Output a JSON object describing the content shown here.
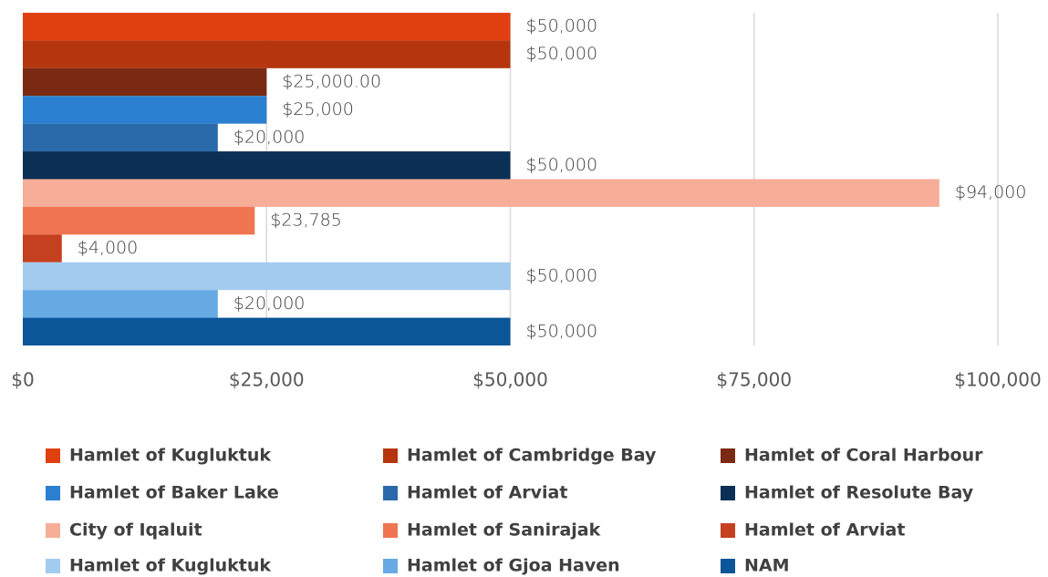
{
  "chart_data": {
    "type": "hbar",
    "xlim": [
      0,
      100000
    ],
    "xticks": [
      {
        "value": 0,
        "label": "$0"
      },
      {
        "value": 25000,
        "label": "$25,000"
      },
      {
        "value": 50000,
        "label": "$50,000"
      },
      {
        "value": 75000,
        "label": "$75,000"
      },
      {
        "value": 100000,
        "label": "$100,000"
      }
    ],
    "grid": true,
    "legend": "bottom",
    "series": [
      {
        "name": "Hamlet of Kugluktuk",
        "color": "#e04010",
        "values": [
          50000
        ],
        "value_labels": [
          "$50,000"
        ]
      },
      {
        "name": "Hamlet of Cambridge Bay",
        "color": "#b5360e",
        "values": [
          50000
        ],
        "value_labels": [
          "$50,000"
        ]
      },
      {
        "name": "Hamlet of Coral Harbour",
        "color": "#7a2a12",
        "values": [
          25000
        ],
        "value_labels": [
          "$25,000.00"
        ]
      },
      {
        "name": "Hamlet of Baker Lake",
        "color": "#2a7fd0",
        "values": [
          25000
        ],
        "value_labels": [
          "$25,000"
        ]
      },
      {
        "name": "Hamlet of Arviat",
        "color": "#2a6aaa",
        "values": [
          20000
        ],
        "value_labels": [
          "$20,000"
        ]
      },
      {
        "name": "Hamlet of Resolute Bay",
        "color": "#0b2f55",
        "values": [
          50000
        ],
        "value_labels": [
          "$50,000"
        ]
      },
      {
        "name": "City of Iqaluit",
        "color": "#f6ae98",
        "values": [
          94000
        ],
        "value_labels": [
          "$94,000"
        ]
      },
      {
        "name": "Hamlet of Sanirajak",
        "color": "#ef7550",
        "values": [
          23785
        ],
        "value_labels": [
          "$23,785"
        ]
      },
      {
        "name": "Hamlet of Arviat",
        "color": "#c5401f",
        "values": [
          4000
        ],
        "value_labels": [
          "$4,000"
        ]
      },
      {
        "name": "Hamlet of Kugluktuk",
        "color": "#a3cbef",
        "values": [
          50000
        ],
        "value_labels": [
          "$50,000"
        ]
      },
      {
        "name": "Hamlet of Gjoa Haven",
        "color": "#67aae3",
        "values": [
          20000
        ],
        "value_labels": [
          "$20,000"
        ]
      },
      {
        "name": "NAM",
        "color": "#0a5699",
        "values": [
          50000
        ],
        "value_labels": [
          "$50,000"
        ]
      }
    ]
  }
}
